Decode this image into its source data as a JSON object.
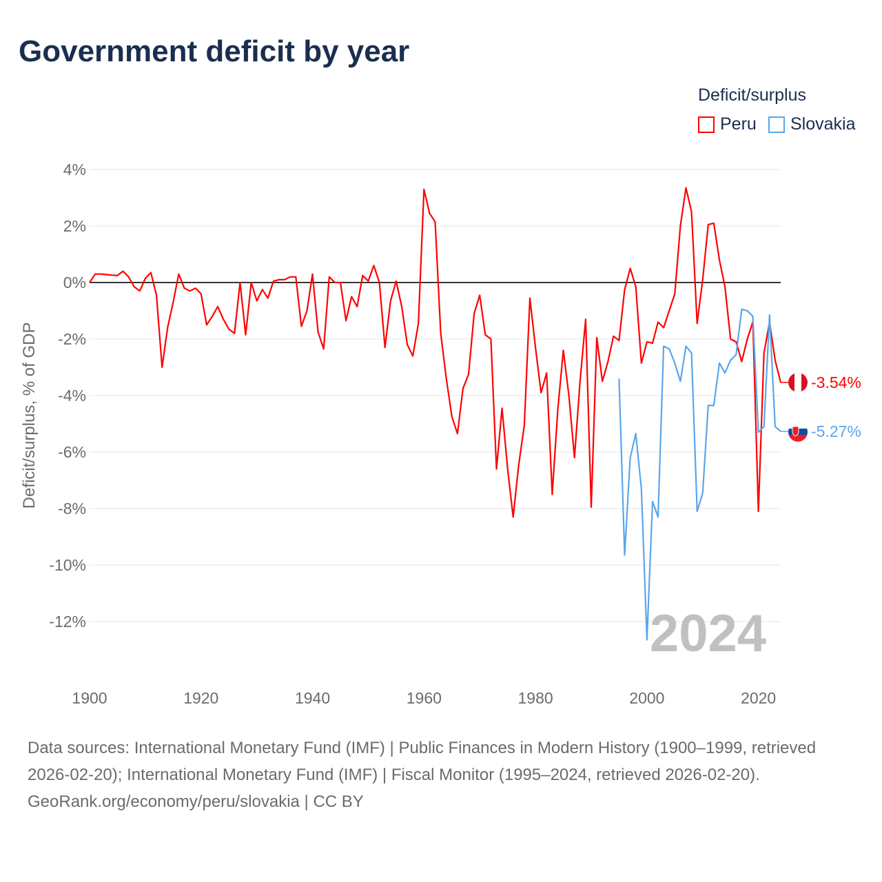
{
  "title": "Government deficit by year",
  "legend": {
    "title": "Deficit/surplus",
    "items": [
      {
        "label": "Peru",
        "color": "#ff0000"
      },
      {
        "label": "Slovakia",
        "color": "#5aa5ea"
      }
    ]
  },
  "watermark_year": "2024",
  "end_labels": {
    "peru": "-3.54%",
    "slovakia": "-5.27%"
  },
  "footer": {
    "sources": "Data sources: International Monetary Fund (IMF) | Public Finances in Modern History (1900–1999, retrieved 2026-02-20); International Monetary Fund (IMF) | Fiscal Monitor (1995–2024, retrieved 2026-02-20).",
    "credit": "GeoRank.org/economy/peru/slovakia | CC BY"
  },
  "chart_data": {
    "type": "line",
    "title": "Government deficit by year",
    "xlabel": "",
    "ylabel": "Deficit/surplus, % of GDP",
    "xlim": [
      1900,
      2024
    ],
    "ylim": [
      -14,
      4.5
    ],
    "x_ticks": [
      1900,
      1920,
      1940,
      1960,
      1980,
      2000,
      2020
    ],
    "x_tick_labels": [
      "1900",
      "1920",
      "1940",
      "1960",
      "1980",
      "2000",
      "2020"
    ],
    "y_ticks": [
      4,
      2,
      0,
      -2,
      -4,
      -6,
      -8,
      -10,
      -12
    ],
    "y_tick_labels": [
      "4%",
      "2%",
      "0%",
      "-2%",
      "-4%",
      "-6%",
      "-8%",
      "-10%",
      "-12%"
    ],
    "grid": true,
    "legend_position": "top-right",
    "series": [
      {
        "name": "Peru",
        "color": "#ff0000",
        "x_start": 1900,
        "values": [
          0,
          0.3,
          0.3,
          0.28,
          0.26,
          0.25,
          0.4,
          0.2,
          -0.15,
          -0.3,
          0.15,
          0.35,
          -0.45,
          -3.0,
          -1.6,
          -0.7,
          0.3,
          -0.2,
          -0.3,
          -0.2,
          -0.4,
          -1.5,
          -1.2,
          -0.85,
          -1.3,
          -1.65,
          -1.8,
          0,
          -1.85,
          0,
          -0.65,
          -0.25,
          -0.55,
          0.05,
          0.1,
          0.1,
          0.2,
          0.2,
          -1.55,
          -1.0,
          0.3,
          -1.75,
          -2.35,
          0.2,
          0,
          0,
          -1.35,
          -0.5,
          -0.85,
          0.25,
          0.05,
          0.6,
          0,
          -2.3,
          -0.65,
          0.05,
          -0.85,
          -2.2,
          -2.6,
          -1.45,
          3.3,
          2.45,
          2.15,
          -1.8,
          -3.4,
          -4.75,
          -5.35,
          -3.75,
          -3.25,
          -1.1,
          -0.45,
          -1.85,
          -2.0,
          -6.6,
          -4.45,
          -6.6,
          -8.3,
          -6.45,
          -5.05,
          -0.55,
          -2.3,
          -3.9,
          -3.2,
          -7.5,
          -4.5,
          -2.4,
          -4.0,
          -6.2,
          -3.5,
          -1.3,
          -7.95,
          -1.95,
          -3.5,
          -2.8,
          -1.9,
          -2.05,
          -0.25,
          0.5,
          -0.15,
          -2.85,
          -2.1,
          -2.15,
          -1.4,
          -1.6,
          -1.0,
          -0.4,
          2.0,
          3.35,
          2.5,
          -1.45,
          0.1,
          2.05,
          2.1,
          0.8,
          -0.15,
          -2.0,
          -2.1,
          -2.8,
          -2.0,
          -1.4,
          -8.1,
          -2.5,
          -1.4,
          -2.75,
          -3.54
        ]
      },
      {
        "name": "Slovakia",
        "color": "#5aa5ea",
        "x_start": 1995,
        "values": [
          -3.4,
          -9.65,
          -6.2,
          -5.35,
          -7.3,
          -12.65,
          -7.75,
          -8.3,
          -2.25,
          -2.35,
          -2.85,
          -3.5,
          -2.25,
          -2.5,
          -8.1,
          -7.45,
          -4.35,
          -4.35,
          -2.85,
          -3.2,
          -2.75,
          -2.55,
          -0.95,
          -1.0,
          -1.2,
          -5.3,
          -5.1,
          -1.15,
          -5.1,
          -5.27
        ]
      }
    ]
  }
}
